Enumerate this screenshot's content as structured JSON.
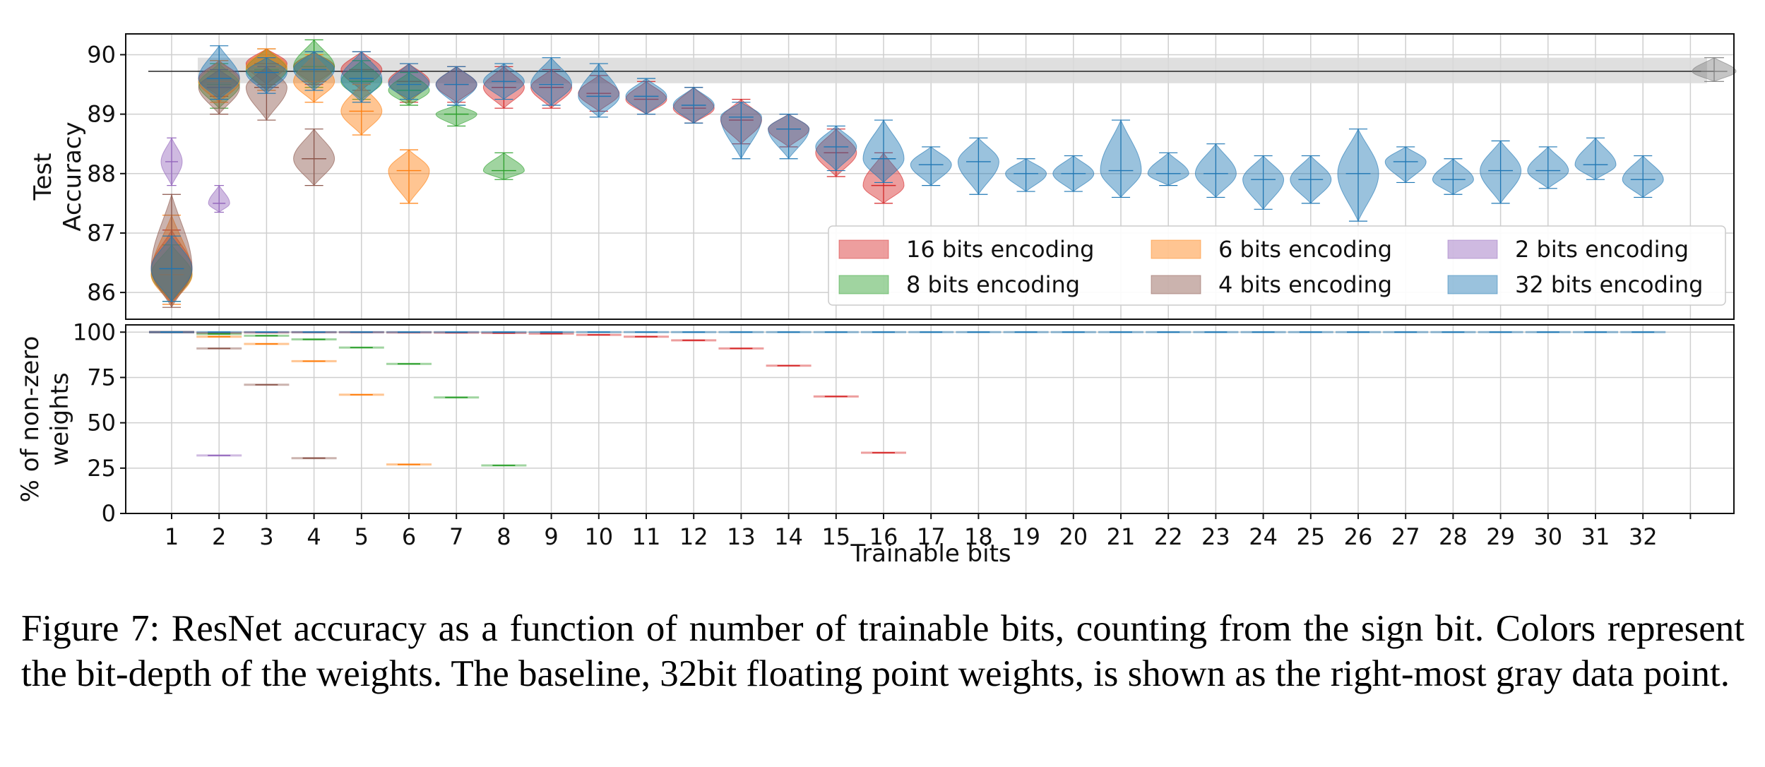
{
  "colors": {
    "16": "#d62728",
    "8": "#2ca02c",
    "6": "#ff7f0e",
    "4": "#8c564b",
    "2": "#9467bd",
    "32": "#1f77b4",
    "baseline": "#7f7f7f"
  },
  "chart_data": [
    {
      "type": "violin",
      "ylabel_lines": [
        "Test",
        "Accuracy"
      ],
      "ylim": [
        85.55,
        90.35
      ],
      "yticks": [
        "86",
        "87",
        "88",
        "89",
        "90"
      ],
      "baseline": {
        "label": "32bit floating point",
        "position": 33.5,
        "mean": 89.72,
        "band": [
          89.52,
          89.95
        ],
        "min": 89.55,
        "max": 89.95
      },
      "legend": [
        {
          "enc": "16",
          "label": "16 bits encoding"
        },
        {
          "enc": "6",
          "label": "6 bits encoding"
        },
        {
          "enc": "2",
          "label": "2 bits encoding"
        },
        {
          "enc": "8",
          "label": "8 bits encoding"
        },
        {
          "enc": "4",
          "label": "4 bits encoding"
        },
        {
          "enc": "32",
          "label": "32 bits encoding"
        }
      ],
      "series": [
        {
          "enc": "16",
          "points": [
            [
              1,
              86.4,
              85.8,
              87.05
            ],
            [
              2,
              89.6,
              89.3,
              89.9
            ],
            [
              3,
              89.85,
              89.5,
              90.1
            ],
            [
              4,
              89.8,
              89.5,
              90.05
            ],
            [
              5,
              89.75,
              89.4,
              90.05
            ],
            [
              6,
              89.55,
              89.2,
              89.85
            ],
            [
              7,
              89.5,
              89.2,
              89.8
            ],
            [
              8,
              89.45,
              89.1,
              89.8
            ],
            [
              9,
              89.45,
              89.1,
              89.75
            ],
            [
              10,
              89.35,
              89.05,
              89.65
            ],
            [
              11,
              89.25,
              89.0,
              89.55
            ],
            [
              12,
              89.1,
              88.85,
              89.45
            ],
            [
              13,
              88.9,
              88.5,
              89.25
            ],
            [
              14,
              88.75,
              88.45,
              89.0
            ],
            [
              15,
              88.35,
              87.95,
              88.75
            ],
            [
              16,
              87.8,
              87.5,
              88.35
            ]
          ]
        },
        {
          "enc": "8",
          "points": [
            [
              1,
              86.3,
              85.85,
              86.8
            ],
            [
              2,
              89.5,
              89.1,
              89.85
            ],
            [
              3,
              89.75,
              89.4,
              90.1
            ],
            [
              4,
              89.8,
              89.45,
              90.25
            ],
            [
              5,
              89.55,
              89.25,
              89.9
            ],
            [
              6,
              89.4,
              89.15,
              89.7
            ],
            [
              7,
              89.0,
              88.8,
              89.15
            ],
            [
              8,
              88.05,
              87.9,
              88.35
            ]
          ]
        },
        {
          "enc": "6",
          "points": [
            [
              1,
              86.3,
              85.8,
              87.3
            ],
            [
              2,
              89.55,
              89.2,
              89.9
            ],
            [
              3,
              89.8,
              89.4,
              90.1
            ],
            [
              4,
              89.55,
              89.2,
              90.0
            ],
            [
              5,
              89.05,
              88.65,
              89.5
            ],
            [
              6,
              88.05,
              87.5,
              88.4
            ]
          ]
        },
        {
          "enc": "4",
          "points": [
            [
              1,
              86.4,
              85.75,
              87.65
            ],
            [
              2,
              89.45,
              89.0,
              89.75
            ],
            [
              3,
              89.45,
              88.9,
              89.8
            ],
            [
              4,
              88.25,
              87.8,
              88.75
            ]
          ]
        },
        {
          "enc": "2",
          "points": [
            [
              1,
              88.2,
              87.8,
              88.6
            ],
            [
              2,
              87.5,
              87.35,
              87.8
            ]
          ]
        },
        {
          "enc": "32",
          "points": [
            [
              1,
              86.4,
              85.85,
              86.95
            ],
            [
              2,
              89.6,
              89.25,
              90.15
            ],
            [
              3,
              89.7,
              89.35,
              89.95
            ],
            [
              4,
              89.75,
              89.4,
              90.05
            ],
            [
              5,
              89.6,
              89.2,
              90.05
            ],
            [
              6,
              89.5,
              89.25,
              89.85
            ],
            [
              7,
              89.5,
              89.15,
              89.8
            ],
            [
              8,
              89.55,
              89.25,
              89.85
            ],
            [
              9,
              89.5,
              89.15,
              89.95
            ],
            [
              10,
              89.3,
              88.95,
              89.85
            ],
            [
              11,
              89.3,
              89.0,
              89.6
            ],
            [
              12,
              89.15,
              88.85,
              89.45
            ],
            [
              13,
              88.95,
              88.25,
              89.2
            ],
            [
              14,
              88.75,
              88.25,
              89.0
            ],
            [
              15,
              88.45,
              88.05,
              88.8
            ],
            [
              16,
              88.25,
              87.85,
              88.9
            ],
            [
              17,
              88.15,
              87.8,
              88.45
            ],
            [
              18,
              88.2,
              87.65,
              88.6
            ],
            [
              19,
              88.0,
              87.7,
              88.25
            ],
            [
              20,
              88.0,
              87.7,
              88.3
            ],
            [
              21,
              88.05,
              87.6,
              88.9
            ],
            [
              22,
              88.0,
              87.8,
              88.35
            ],
            [
              23,
              88.0,
              87.6,
              88.5
            ],
            [
              24,
              87.9,
              87.4,
              88.3
            ],
            [
              25,
              87.9,
              87.5,
              88.3
            ],
            [
              26,
              88.0,
              87.2,
              88.75
            ],
            [
              27,
              88.2,
              87.85,
              88.45
            ],
            [
              28,
              87.9,
              87.65,
              88.25
            ],
            [
              29,
              88.05,
              87.5,
              88.55
            ],
            [
              30,
              88.05,
              87.75,
              88.45
            ],
            [
              31,
              88.15,
              87.9,
              88.6
            ],
            [
              32,
              87.9,
              87.6,
              88.3
            ]
          ]
        }
      ]
    },
    {
      "type": "violin",
      "ylabel_lines": [
        "% of non-zero",
        "weights"
      ],
      "ylim": [
        0,
        104
      ],
      "yticks": [
        "0",
        "25",
        "50",
        "75",
        "100"
      ],
      "xlabel": "Trainable bits",
      "xticks": [
        "1",
        "2",
        "3",
        "4",
        "5",
        "6",
        "7",
        "8",
        "9",
        "10",
        "11",
        "12",
        "13",
        "14",
        "15",
        "16",
        "17",
        "18",
        "19",
        "20",
        "21",
        "22",
        "23",
        "24",
        "25",
        "26",
        "27",
        "28",
        "29",
        "30",
        "31",
        "32"
      ],
      "series": [
        {
          "enc": "16",
          "points": [
            [
              1,
              100
            ],
            [
              2,
              99.5
            ],
            [
              3,
              99.8
            ],
            [
              4,
              99.9
            ],
            [
              5,
              99.9
            ],
            [
              6,
              99.8
            ],
            [
              7,
              99.7
            ],
            [
              8,
              99.5
            ],
            [
              9,
              99.2
            ],
            [
              10,
              98.5
            ],
            [
              11,
              97.5
            ],
            [
              12,
              95.5
            ],
            [
              13,
              91
            ],
            [
              14,
              81.5
            ],
            [
              15,
              64.5
            ],
            [
              16,
              33.5
            ]
          ]
        },
        {
          "enc": "8",
          "points": [
            [
              1,
              100
            ],
            [
              2,
              99
            ],
            [
              3,
              98
            ],
            [
              4,
              96
            ],
            [
              5,
              91.5
            ],
            [
              6,
              82.5
            ],
            [
              7,
              64
            ],
            [
              8,
              26.5
            ]
          ]
        },
        {
          "enc": "6",
          "points": [
            [
              1,
              100
            ],
            [
              2,
              97.5
            ],
            [
              3,
              93.5
            ],
            [
              4,
              84
            ],
            [
              5,
              65.5
            ],
            [
              6,
              27
            ]
          ]
        },
        {
          "enc": "4",
          "points": [
            [
              1,
              100
            ],
            [
              2,
              91
            ],
            [
              3,
              71
            ],
            [
              4,
              30.5
            ]
          ]
        },
        {
          "enc": "2",
          "points": [
            [
              1,
              100
            ],
            [
              2,
              32
            ]
          ]
        },
        {
          "enc": "32",
          "points": [
            [
              1,
              100
            ],
            [
              2,
              100
            ],
            [
              3,
              100
            ],
            [
              4,
              100
            ],
            [
              5,
              100
            ],
            [
              6,
              100
            ],
            [
              7,
              100
            ],
            [
              8,
              100
            ],
            [
              9,
              100
            ],
            [
              10,
              100
            ],
            [
              11,
              100
            ],
            [
              12,
              100
            ],
            [
              13,
              100
            ],
            [
              14,
              100
            ],
            [
              15,
              100
            ],
            [
              16,
              100
            ],
            [
              17,
              100
            ],
            [
              18,
              100
            ],
            [
              19,
              100
            ],
            [
              20,
              100
            ],
            [
              21,
              100
            ],
            [
              22,
              100
            ],
            [
              23,
              100
            ],
            [
              24,
              100
            ],
            [
              25,
              100
            ],
            [
              26,
              100
            ],
            [
              27,
              100
            ],
            [
              28,
              100
            ],
            [
              29,
              100
            ],
            [
              30,
              100
            ],
            [
              31,
              100
            ],
            [
              32,
              100
            ]
          ]
        }
      ]
    }
  ],
  "caption": "Figure 7: ResNet accuracy as a function of number of trainable bits, counting from the sign bit. Colors represent the bit-depth of the weights. The baseline, 32bit floating point weights, is shown as the right-most gray data point."
}
